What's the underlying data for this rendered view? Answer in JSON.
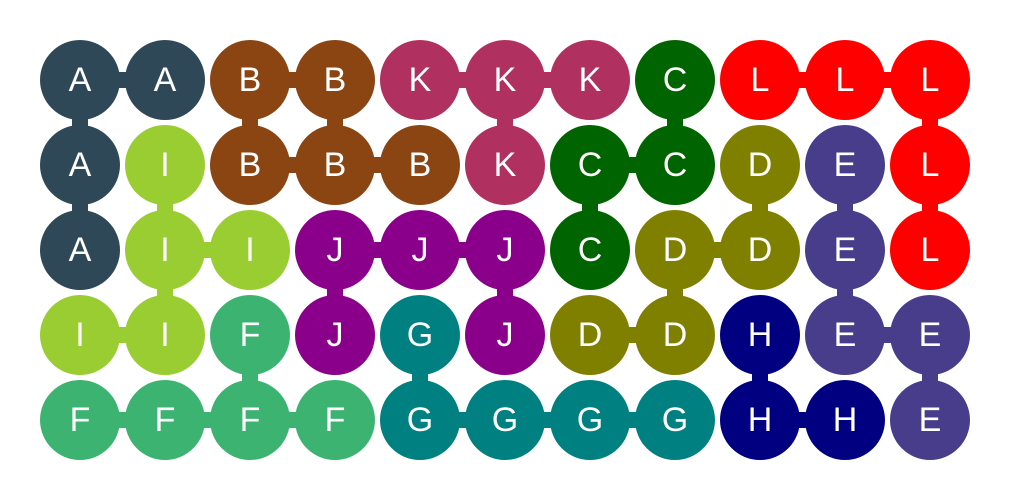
{
  "puzzle": {
    "rows": 5,
    "cols": 11,
    "grid": [
      [
        "A",
        "A",
        "B",
        "B",
        "K",
        "K",
        "K",
        "C",
        "L",
        "L",
        "L"
      ],
      [
        "A",
        "I",
        "B",
        "B",
        "B",
        "K",
        "C",
        "C",
        "D",
        "E",
        "L"
      ],
      [
        "A",
        "I",
        "I",
        "J",
        "J",
        "J",
        "C",
        "D",
        "D",
        "E",
        "L"
      ],
      [
        "I",
        "I",
        "F",
        "J",
        "G",
        "J",
        "D",
        "D",
        "H",
        "E",
        "E"
      ],
      [
        "F",
        "F",
        "F",
        "F",
        "G",
        "G",
        "G",
        "G",
        "H",
        "H",
        "E"
      ]
    ],
    "colors": {
      "A": "#2F4858",
      "B": "#8B4513",
      "C": "#006400",
      "D": "#808000",
      "E": "#483D8B",
      "F": "#3CB371",
      "G": "#008080",
      "H": "#000080",
      "I": "#9ACD32",
      "J": "#8B008B",
      "K": "#B03060",
      "L": "#FF0000"
    }
  }
}
